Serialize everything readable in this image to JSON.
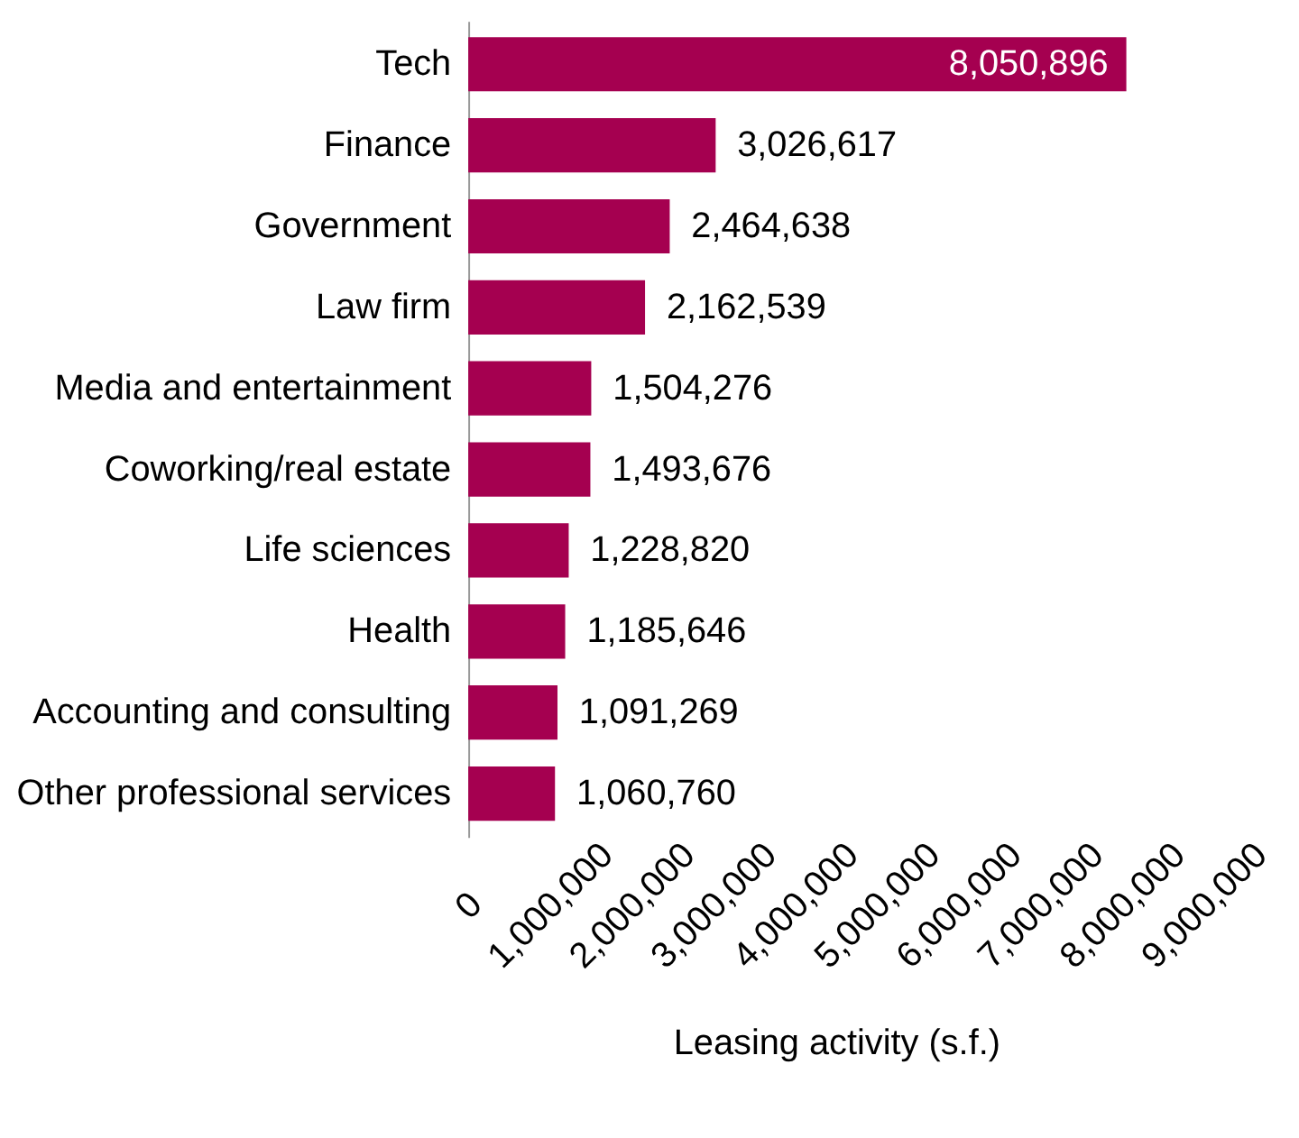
{
  "chart_data": {
    "type": "bar",
    "orientation": "horizontal",
    "xlabel": "Leasing activity (s.f.)",
    "categories": [
      "Tech",
      "Finance",
      "Government",
      "Law firm",
      "Media and entertainment",
      "Coworking/real estate",
      "Life sciences",
      "Health",
      "Accounting and consulting",
      "Other professional services"
    ],
    "values": [
      8050896,
      3026617,
      2464638,
      2162539,
      1504276,
      1493676,
      1228820,
      1185646,
      1091269,
      1060760
    ],
    "value_labels": [
      "8,050,896",
      "3,026,617",
      "2,464,638",
      "2,162,539",
      "1,504,276",
      "1,493,676",
      "1,228,820",
      "1,185,646",
      "1,091,269",
      "1,060,760"
    ],
    "color": "#a50050",
    "xlim": [
      0,
      9000000
    ],
    "xticks": [
      0,
      {
        "value": 1000000,
        "label": "1,000,000"
      },
      {
        "value": 2000000,
        "label": "2,000,000"
      },
      {
        "value": 3000000,
        "label": "3,000,000"
      },
      {
        "value": 4000000,
        "label": "4,000,000"
      },
      {
        "value": 5000000,
        "label": "5,000,000"
      },
      {
        "value": 6000000,
        "label": "6,000,000"
      },
      {
        "value": 7000000,
        "label": "7,000,000"
      },
      {
        "value": 8000000,
        "label": "8,000,000"
      },
      {
        "value": 9000000,
        "label": "9,000,000"
      }
    ],
    "grid": false
  }
}
